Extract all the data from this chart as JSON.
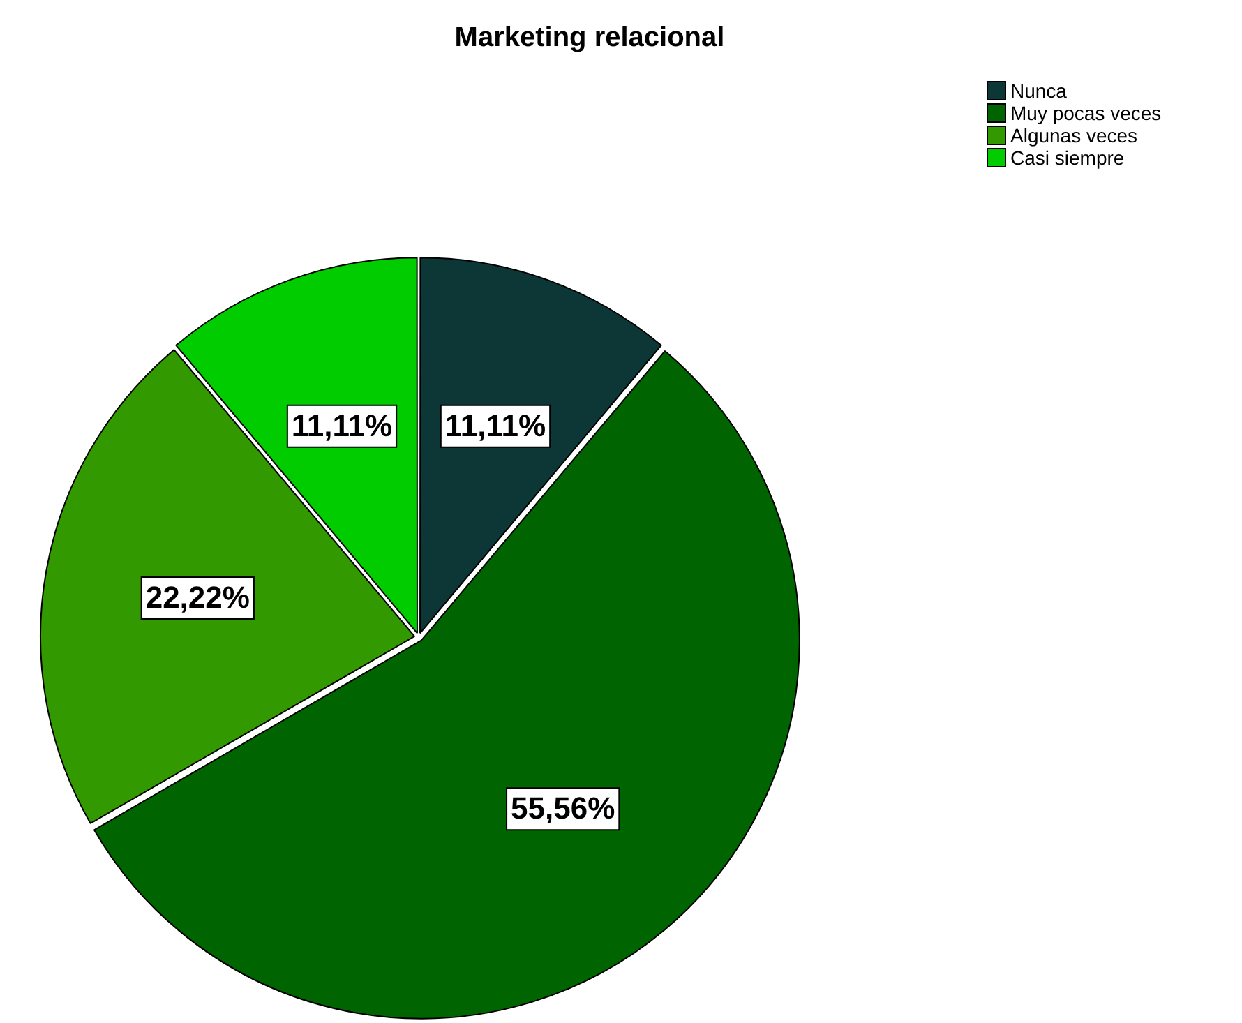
{
  "chart_data": {
    "type": "pie",
    "title": "Marketing relacional",
    "categories": [
      "Nunca",
      "Muy pocas veces",
      "Algunas veces",
      "Casi siempre"
    ],
    "values": [
      11.11,
      55.56,
      22.22,
      11.11
    ],
    "colors": [
      "#0d3636",
      "#006400",
      "#339900",
      "#00cc00"
    ],
    "value_labels": [
      "11,11%",
      "55,56%",
      "22,22%",
      "11,11%"
    ],
    "legend": "top right"
  }
}
